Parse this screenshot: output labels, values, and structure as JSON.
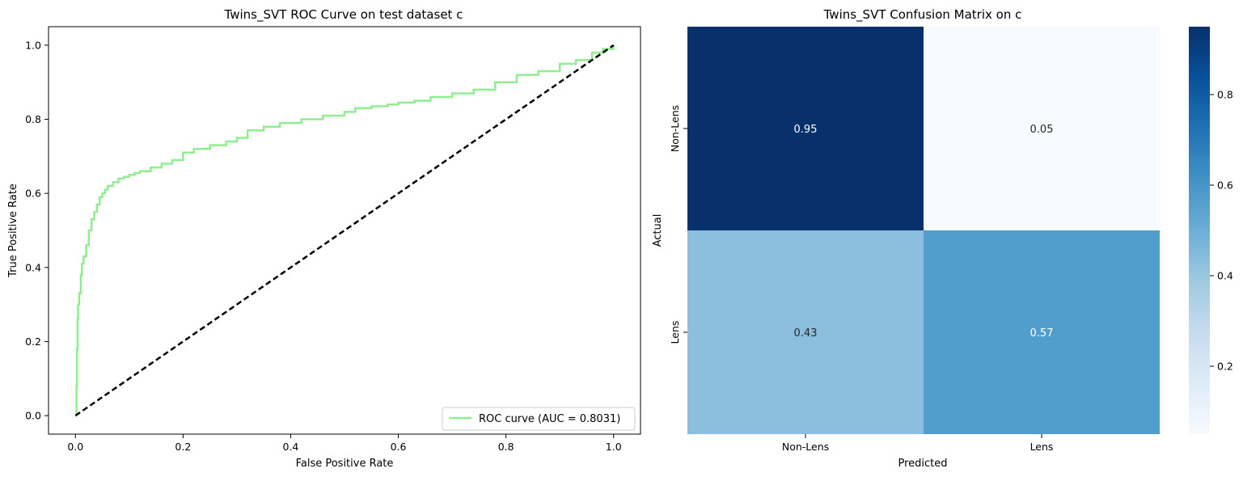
{
  "chart_data": [
    {
      "type": "line",
      "title": "Twins_SVT ROC Curve on test dataset c",
      "xlabel": "False Positive Rate",
      "ylabel": "True Positive Rate",
      "xlim": [
        -0.05,
        1.05
      ],
      "ylim": [
        -0.05,
        1.05
      ],
      "xticks": [
        "0.0",
        "0.2",
        "0.4",
        "0.6",
        "0.8",
        "1.0"
      ],
      "yticks": [
        "0.0",
        "0.2",
        "0.4",
        "0.6",
        "0.8",
        "1.0"
      ],
      "grid": false,
      "legend_position": "lower-right",
      "series": [
        {
          "name": "ROC curve (AUC = 0.8031)",
          "color": "#90ee90",
          "style": "step",
          "x": [
            0,
            0.002,
            0.003,
            0.004,
            0.005,
            0.007,
            0.01,
            0.012,
            0.015,
            0.02,
            0.025,
            0.03,
            0.035,
            0.04,
            0.045,
            0.05,
            0.055,
            0.06,
            0.07,
            0.08,
            0.09,
            0.1,
            0.11,
            0.12,
            0.14,
            0.16,
            0.18,
            0.2,
            0.22,
            0.25,
            0.28,
            0.3,
            0.32,
            0.35,
            0.38,
            0.42,
            0.46,
            0.5,
            0.52,
            0.55,
            0.58,
            0.6,
            0.63,
            0.66,
            0.7,
            0.74,
            0.78,
            0.82,
            0.86,
            0.9,
            0.93,
            0.96,
            0.98,
            1.0
          ],
          "y": [
            0,
            0.08,
            0.18,
            0.26,
            0.3,
            0.33,
            0.38,
            0.41,
            0.43,
            0.46,
            0.5,
            0.53,
            0.55,
            0.57,
            0.59,
            0.6,
            0.61,
            0.62,
            0.63,
            0.64,
            0.645,
            0.65,
            0.655,
            0.66,
            0.67,
            0.68,
            0.69,
            0.71,
            0.72,
            0.73,
            0.74,
            0.75,
            0.77,
            0.78,
            0.79,
            0.8,
            0.81,
            0.82,
            0.83,
            0.835,
            0.84,
            0.845,
            0.85,
            0.86,
            0.87,
            0.88,
            0.9,
            0.92,
            0.93,
            0.95,
            0.96,
            0.98,
            0.99,
            1.0
          ]
        },
        {
          "name": "",
          "color": "#000000",
          "style": "dashed",
          "x": [
            0,
            1
          ],
          "y": [
            0,
            1
          ]
        }
      ]
    },
    {
      "type": "heatmap",
      "title": "Twins_SVT Confusion Matrix on c",
      "xlabel": "Predicted",
      "ylabel": "Actual",
      "x_categories": [
        "Non-Lens",
        "Lens"
      ],
      "y_categories": [
        "Non-Lens",
        "Lens"
      ],
      "values": [
        [
          0.95,
          0.05
        ],
        [
          0.43,
          0.57
        ]
      ],
      "cell_labels": [
        [
          "0.95",
          "0.05"
        ],
        [
          "0.43",
          "0.57"
        ]
      ],
      "colormap": "Blues",
      "colorbar_range": [
        0.05,
        0.95
      ],
      "colorbar_ticks": [
        "0.2",
        "0.4",
        "0.6",
        "0.8"
      ]
    }
  ]
}
